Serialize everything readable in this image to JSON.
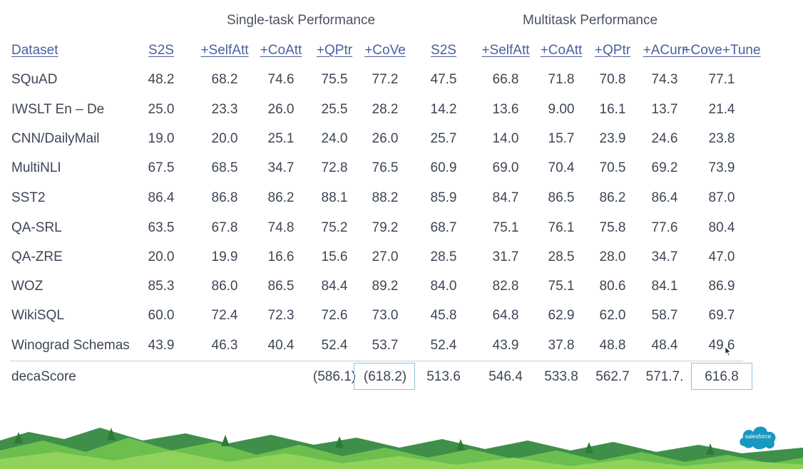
{
  "group_headers": {
    "single": "Single-task Performance",
    "multi": "Multitask Performance"
  },
  "table": {
    "columns": [
      "Dataset",
      "S2S",
      "+SelfAtt",
      "+CoAtt",
      "+QPtr",
      "+CoVe",
      "S2S",
      "+SelfAtt",
      "+CoAtt",
      "+QPtr",
      "+ACurr",
      "+Cove+Tune"
    ],
    "rows": [
      {
        "label": "SQuAD",
        "values": [
          "48.2",
          "68.2",
          "74.6",
          "75.5",
          "77.2",
          "47.5",
          "66.8",
          "71.8",
          "70.8",
          "74.3",
          "77.1"
        ]
      },
      {
        "label": "IWSLT En – De",
        "values": [
          "25.0",
          "23.3",
          "26.0",
          "25.5",
          "28.2",
          "14.2",
          "13.6",
          "9.00",
          "16.1",
          "13.7",
          "21.4"
        ]
      },
      {
        "label": "CNN/DailyMail",
        "values": [
          "19.0",
          "20.0",
          "25.1",
          "24.0",
          "26.0",
          "25.7",
          "14.0",
          "15.7",
          "23.9",
          "24.6",
          "23.8"
        ]
      },
      {
        "label": "MultiNLI",
        "values": [
          "67.5",
          "68.5",
          "34.7",
          "72.8",
          "76.5",
          "60.9",
          "69.0",
          "70.4",
          "70.5",
          "69.2",
          "73.9"
        ]
      },
      {
        "label": "SST2",
        "values": [
          "86.4",
          "86.8",
          "86.2",
          "88.1",
          "88.2",
          "85.9",
          "84.7",
          "86.5",
          "86.2",
          "86.4",
          "87.0"
        ]
      },
      {
        "label": "QA-SRL",
        "values": [
          "63.5",
          "67.8",
          "74.8",
          "75.2",
          "79.2",
          "68.7",
          "75.1",
          "76.1",
          "75.8",
          "77.6",
          "80.4"
        ]
      },
      {
        "label": "QA-ZRE",
        "values": [
          "20.0",
          "19.9",
          "16.6",
          "15.6",
          "27.0",
          "28.5",
          "31.7",
          "28.5",
          "28.0",
          "34.7",
          "47.0"
        ]
      },
      {
        "label": "WOZ",
        "values": [
          "85.3",
          "86.0",
          "86.5",
          "84.4",
          "89.2",
          "84.0",
          "82.8",
          "75.1",
          "80.6",
          "84.1",
          "86.9"
        ]
      },
      {
        "label": "WikiSQL",
        "values": [
          "60.0",
          "72.4",
          "72.3",
          "72.6",
          "73.0",
          "45.8",
          "64.8",
          "62.9",
          "62.0",
          "58.7",
          "69.7"
        ]
      },
      {
        "label": "Winograd Schemas",
        "values": [
          "43.9",
          "46.3",
          "40.4",
          "52.4",
          "53.7",
          "52.4",
          "43.9",
          "37.8",
          "48.8",
          "48.4",
          "49.6"
        ]
      }
    ],
    "decascore": {
      "label": "decaScore",
      "values": [
        "",
        "",
        "",
        "(586.1)",
        "(618.2)",
        "513.6",
        "546.4",
        "533.8",
        "562.7",
        "571.7.",
        "616.8"
      ]
    }
  },
  "logo_text": "salesforce",
  "colors": {
    "header_link": "#4a5fa0",
    "highlight_box": "#8fc1e3",
    "logo": "#1798c1"
  }
}
